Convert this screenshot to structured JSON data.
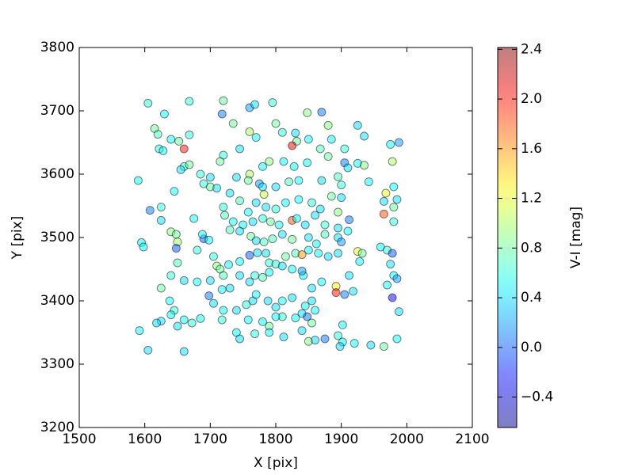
{
  "chart_data": {
    "type": "scatter",
    "xlabel": "X [pix]",
    "ylabel": "Y [pix]",
    "colorbar_label": "V-I [mag]",
    "colormap": "jet",
    "alpha": 0.5,
    "xlim": [
      1500,
      2100
    ],
    "xticks": [
      1500,
      1600,
      1700,
      1800,
      1900,
      2000,
      2100
    ],
    "ylim": [
      3200,
      3800
    ],
    "yticks": [
      3200,
      3300,
      3400,
      3500,
      3600,
      3700,
      3800
    ],
    "clim": [
      -0.645,
      2.415
    ],
    "cticks": [
      {
        "value": -0.4,
        "label": "−0.4"
      },
      {
        "value": 0,
        "label": "0.0"
      },
      0.4,
      0.8,
      1.2,
      1.6,
      {
        "value": 2,
        "label": "2.0"
      },
      2.4
    ],
    "x": [
      1605,
      1630,
      1668,
      1720,
      1718,
      1760,
      1768,
      1795,
      1848,
      1870,
      1615,
      1620,
      1640,
      1652,
      1668,
      1660,
      1622,
      1628,
      1735,
      1760,
      1770,
      1800,
      1810,
      1830,
      1832,
      1825,
      1850,
      1880,
      1885,
      1905,
      1925,
      1935,
      1975,
      1988,
      1978,
      1905,
      1910,
      1925,
      1935,
      1895,
      1900,
      1942,
      1968,
      1980,
      1965,
      1985,
      1980,
      1965,
      1980,
      1868,
      1880,
      1848,
      1828,
      1812,
      1790,
      1780,
      1760,
      1758,
      1740,
      1720,
      1715,
      1745,
      1700,
      1685,
      1660,
      1668,
      1655,
      1590,
      1645,
      1700,
      1710,
      1690,
      1775,
      1780,
      1782,
      1800,
      1820,
      1835,
      1870,
      1900,
      1895,
      1912,
      1885,
      1868,
      1855,
      1835,
      1815,
      1800,
      1785,
      1770,
      1758,
      1745,
      1730,
      1720,
      1722,
      1735,
      1750,
      1765,
      1780,
      1792,
      1805,
      1825,
      1832,
      1845,
      1860,
      1875,
      1895,
      1910,
      1608,
      1625,
      1625,
      1640,
      1648,
      1650,
      1648,
      1595,
      1598,
      1675,
      1690,
      1688,
      1698,
      1680,
      1705,
      1710,
      1715,
      1730,
      1745,
      1762,
      1770,
      1782,
      1795,
      1810,
      1825,
      1850,
      1862,
      1875,
      1895,
      1900,
      1925,
      1932,
      1928,
      1960,
      1970,
      1978,
      1975,
      1980,
      1985,
      1970,
      1978,
      1988,
      1650,
      1640,
      1660,
      1680,
      1625,
      1638,
      1700,
      1698,
      1720,
      1728,
      1745,
      1760,
      1772,
      1785,
      1790,
      1800,
      1815,
      1830,
      1840,
      1850,
      1865,
      1880,
      1895,
      1912,
      1918,
      1905,
      1892,
      1892,
      1870,
      1855,
      1842,
      1840,
      1825,
      1810,
      1790,
      1780,
      1768,
      1760,
      1745,
      1730,
      1718,
      1705,
      1720,
      1740,
      1755,
      1765,
      1770,
      1788,
      1800,
      1810,
      1825,
      1845,
      1860,
      1855,
      1840,
      1848,
      1830,
      1810,
      1800,
      1790,
      1780,
      1758,
      1740,
      1745,
      1718,
      1685,
      1672,
      1660,
      1645,
      1640,
      1650,
      1625,
      1618,
      1592,
      1605,
      1660,
      1768,
      1790,
      1812,
      1840,
      1850,
      1860,
      1875,
      1895,
      1902,
      1898,
      1920,
      1945,
      1965,
      1985,
      1902,
      1855
    ],
    "y": [
      3712,
      3695,
      3715,
      3716,
      3695,
      3705,
      3710,
      3713,
      3697,
      3698,
      3672,
      3663,
      3655,
      3652,
      3662,
      3640,
      3640,
      3637,
      3680,
      3667,
      3658,
      3680,
      3666,
      3665,
      3652,
      3645,
      3655,
      3677,
      3655,
      3640,
      3677,
      3660,
      3647,
      3650,
      3620,
      3618,
      3610,
      3617,
      3614,
      3596,
      3583,
      3588,
      3570,
      3580,
      3557,
      3560,
      3548,
      3537,
      3525,
      3640,
      3628,
      3618,
      3612,
      3620,
      3620,
      3612,
      3600,
      3590,
      3595,
      3630,
      3620,
      3640,
      3595,
      3600,
      3612,
      3615,
      3607,
      3590,
      3573,
      3580,
      3578,
      3585,
      3585,
      3580,
      3568,
      3580,
      3588,
      3590,
      3590,
      3563,
      3540,
      3528,
      3565,
      3545,
      3555,
      3560,
      3555,
      3545,
      3548,
      3555,
      3540,
      3558,
      3570,
      3548,
      3535,
      3525,
      3520,
      3525,
      3530,
      3525,
      3520,
      3527,
      3530,
      3520,
      3535,
      3520,
      3515,
      3510,
      3543,
      3548,
      3527,
      3509,
      3505,
      3493,
      3483,
      3492,
      3485,
      3530,
      3498,
      3505,
      3496,
      3480,
      3470,
      3455,
      3450,
      3512,
      3510,
      3502,
      3495,
      3493,
      3498,
      3505,
      3497,
      3500,
      3490,
      3505,
      3500,
      3493,
      3478,
      3475,
      3462,
      3485,
      3480,
      3475,
      3458,
      3440,
      3435,
      3425,
      3405,
      3383,
      3460,
      3440,
      3432,
      3430,
      3420,
      3400,
      3432,
      3408,
      3440,
      3457,
      3462,
      3472,
      3476,
      3475,
      3460,
      3458,
      3470,
      3475,
      3473,
      3480,
      3475,
      3470,
      3475,
      3440,
      3415,
      3410,
      3423,
      3413,
      3430,
      3420,
      3440,
      3447,
      3450,
      3455,
      3445,
      3437,
      3440,
      3430,
      3440,
      3420,
      3418,
      3396,
      3385,
      3385,
      3394,
      3400,
      3410,
      3400,
      3390,
      3400,
      3405,
      3392,
      3385,
      3400,
      3380,
      3375,
      3373,
      3375,
      3375,
      3360,
      3367,
      3370,
      3350,
      3340,
      3370,
      3372,
      3365,
      3370,
      3385,
      3378,
      3360,
      3368,
      3365,
      3353,
      3322,
      3320,
      3348,
      3350,
      3343,
      3353,
      3336,
      3338,
      3340,
      3345,
      3335,
      3328,
      3333,
      3330,
      3328,
      3340,
      3362,
      3365
    ],
    "c": [
      0.6,
      0.5,
      0.6,
      0.8,
      0.1,
      0.2,
      0.4,
      0.6,
      0.9,
      0.1,
      0.8,
      0.7,
      0.5,
      0.8,
      0.6,
      2.0,
      0.6,
      0.5,
      0.8,
      1.0,
      0.5,
      0.8,
      0.6,
      0.4,
      0.8,
      2.1,
      0.5,
      0.9,
      0.5,
      0.6,
      0.4,
      0.4,
      0.5,
      0.2,
      1.0,
      0.1,
      0.4,
      0.5,
      0.9,
      0.7,
      0.6,
      0.5,
      1.2,
      0.5,
      0.4,
      0.4,
      0.8,
      1.8,
      0.6,
      0.7,
      0.8,
      0.5,
      0.5,
      0.5,
      0.9,
      0.5,
      1.0,
      0.8,
      0.4,
      0.6,
      0.8,
      0.4,
      0.4,
      0.6,
      0.6,
      0.8,
      0.4,
      0.5,
      0.5,
      0.8,
      0.4,
      0.6,
      0.2,
      0.4,
      1.1,
      0.4,
      0.7,
      0.5,
      0.4,
      0.4,
      0.9,
      0.1,
      0.8,
      0.4,
      0.6,
      0.5,
      0.5,
      0.6,
      0.4,
      0.4,
      0.5,
      0.7,
      0.4,
      0.6,
      0.7,
      0.5,
      0.5,
      0.4,
      0.6,
      0.8,
      0.5,
      1.8,
      0.5,
      0.4,
      0.4,
      0.6,
      0.4,
      0.5,
      0.1,
      0.6,
      0.4,
      0.9,
      0.8,
      1.0,
      0.0,
      0.5,
      0.5,
      0.5,
      0.0,
      0.5,
      0.5,
      0.6,
      0.6,
      0.9,
      0.8,
      0.7,
      0.4,
      0.8,
      0.4,
      0.7,
      0.7,
      0.4,
      0.8,
      0.4,
      0.5,
      0.7,
      0.4,
      0.2,
      1.2,
      0.8,
      0.5,
      0.5,
      0.6,
      0.0,
      0.4,
      0.5,
      0.2,
      0.5,
      -0.3,
      0.4,
      0.7,
      0.6,
      0.4,
      0.5,
      0.8,
      0.5,
      0.4,
      0.1,
      0.7,
      0.5,
      0.5,
      0.0,
      0.4,
      0.4,
      0.6,
      0.6,
      0.8,
      0.7,
      1.6,
      0.5,
      0.5,
      0.4,
      0.4,
      0.4,
      0.4,
      0.1,
      1.3,
      2.0,
      0.5,
      0.4,
      0.5,
      0.2,
      0.5,
      0.4,
      0.5,
      0.7,
      0.6,
      0.4,
      0.4,
      0.4,
      0.5,
      0.4,
      0.5,
      0.4,
      0.6,
      0.4,
      0.5,
      0.4,
      0.4,
      0.5,
      0.4,
      0.5,
      0.5,
      0.4,
      0.4,
      0.1,
      0.5,
      0.6,
      0.5,
      0.8,
      0.5,
      0.5,
      0.5,
      0.4,
      0.6,
      0.5,
      0.6,
      0.5,
      0.6,
      0.5,
      0.4,
      0.4,
      0.4,
      0.5,
      0.4,
      0.4,
      0.6,
      0.5,
      0.4,
      0.4,
      0.9,
      0.4,
      0.1,
      0.6,
      0.5,
      0.4,
      0.5,
      0.4,
      0.8,
      0.5,
      0.5,
      0.8
    ]
  }
}
